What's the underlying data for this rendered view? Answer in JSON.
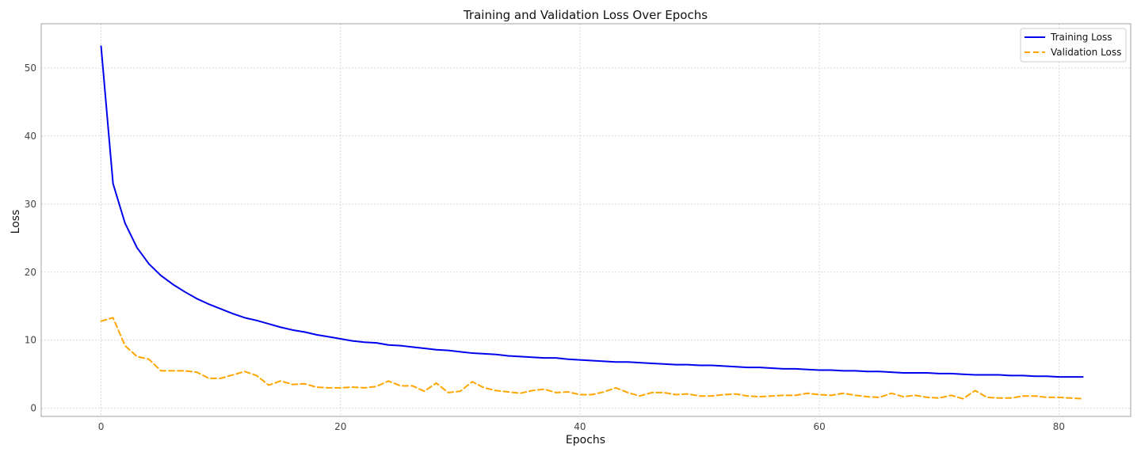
{
  "chart_data": {
    "type": "line",
    "title": "Training and Validation Loss Over Epochs",
    "xlabel": "Epochs",
    "ylabel": "Loss",
    "xlim": [
      -5,
      86
    ],
    "ylim": [
      -1.2,
      56.5
    ],
    "xticks": [
      0,
      20,
      40,
      60,
      80
    ],
    "yticks": [
      0,
      10,
      20,
      30,
      40,
      50
    ],
    "grid": true,
    "legend_position": "top-right",
    "x": [
      0,
      1,
      2,
      3,
      4,
      5,
      6,
      7,
      8,
      9,
      10,
      11,
      12,
      13,
      14,
      15,
      16,
      17,
      18,
      19,
      20,
      21,
      22,
      23,
      24,
      25,
      26,
      27,
      28,
      29,
      30,
      31,
      32,
      33,
      34,
      35,
      36,
      37,
      38,
      39,
      40,
      41,
      42,
      43,
      44,
      45,
      46,
      47,
      48,
      49,
      50,
      51,
      52,
      53,
      54,
      55,
      56,
      57,
      58,
      59,
      60,
      61,
      62,
      63,
      64,
      65,
      66,
      67,
      68,
      69,
      70,
      71,
      72,
      73,
      74,
      75,
      76,
      77,
      78,
      79,
      80,
      81,
      82
    ],
    "series": [
      {
        "name": "Training Loss",
        "color": "#0000ee",
        "dash": "solid",
        "values": [
          53.2,
          33.0,
          27.2,
          23.6,
          21.2,
          19.5,
          18.2,
          17.1,
          16.1,
          15.3,
          14.6,
          13.9,
          13.3,
          12.9,
          12.4,
          11.9,
          11.5,
          11.2,
          10.8,
          10.5,
          10.2,
          9.9,
          9.7,
          9.6,
          9.3,
          9.2,
          9.0,
          8.8,
          8.6,
          8.5,
          8.3,
          8.1,
          8.0,
          7.9,
          7.7,
          7.6,
          7.5,
          7.4,
          7.4,
          7.2,
          7.1,
          7.0,
          6.9,
          6.8,
          6.8,
          6.7,
          6.6,
          6.5,
          6.4,
          6.4,
          6.3,
          6.3,
          6.2,
          6.1,
          6.0,
          6.0,
          5.9,
          5.8,
          5.8,
          5.7,
          5.6,
          5.6,
          5.5,
          5.5,
          5.4,
          5.4,
          5.3,
          5.2,
          5.2,
          5.2,
          5.1,
          5.1,
          5.0,
          4.9,
          4.9,
          4.9,
          4.8,
          4.8,
          4.7,
          4.7,
          4.6,
          4.6,
          4.6
        ]
      },
      {
        "name": "Validation Loss",
        "color": "#ffa500",
        "dash": "dashed",
        "values": [
          12.8,
          13.3,
          9.2,
          7.6,
          7.2,
          5.5,
          5.5,
          5.5,
          5.3,
          4.4,
          4.4,
          4.9,
          5.4,
          4.8,
          3.4,
          4.0,
          3.5,
          3.6,
          3.1,
          3.0,
          3.0,
          3.1,
          3.0,
          3.2,
          4.0,
          3.3,
          3.3,
          2.5,
          3.7,
          2.3,
          2.5,
          3.9,
          3.0,
          2.6,
          2.4,
          2.2,
          2.6,
          2.8,
          2.3,
          2.4,
          2.0,
          2.0,
          2.4,
          3.0,
          2.3,
          1.8,
          2.3,
          2.3,
          2.0,
          2.1,
          1.8,
          1.8,
          2.0,
          2.1,
          1.8,
          1.7,
          1.8,
          1.9,
          1.9,
          2.2,
          2.0,
          1.9,
          2.2,
          1.9,
          1.7,
          1.6,
          2.2,
          1.7,
          1.9,
          1.6,
          1.5,
          1.9,
          1.4,
          2.6,
          1.6,
          1.5,
          1.5,
          1.8,
          1.8,
          1.6,
          1.6,
          1.5,
          1.4
        ]
      }
    ]
  }
}
